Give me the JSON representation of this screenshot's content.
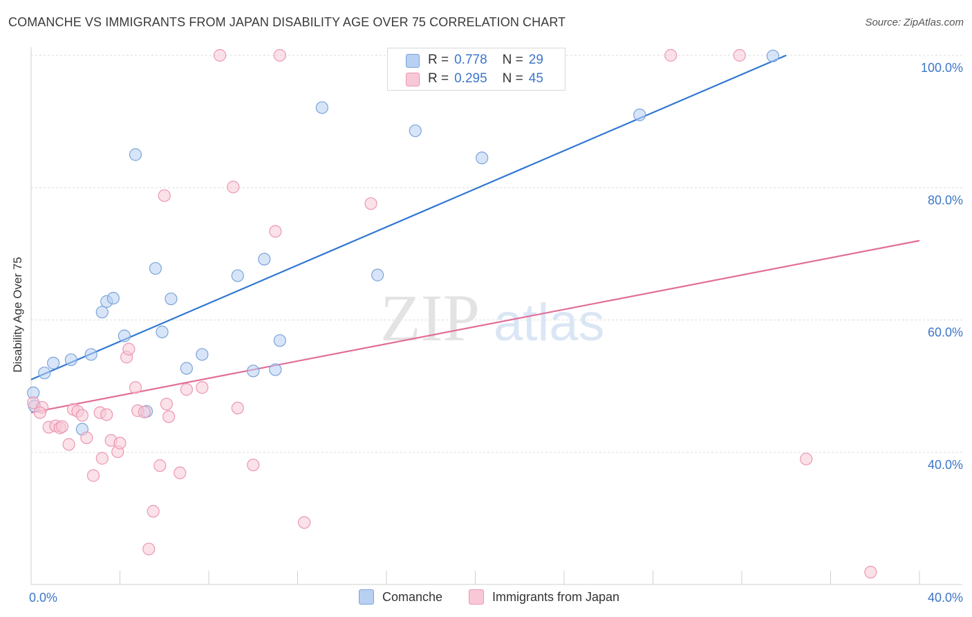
{
  "title": "COMANCHE VS IMMIGRANTS FROM JAPAN DISABILITY AGE OVER 75 CORRELATION CHART",
  "source": "Source: ZipAtlas.com",
  "watermark": {
    "zip": "ZIP",
    "atlas": "atlas"
  },
  "stats": [
    {
      "r_label": "R =",
      "r_value": "0.778",
      "n_label": "N =",
      "n_value": "29"
    },
    {
      "r_label": "R =",
      "r_value": "0.295",
      "n_label": "N =",
      "n_value": "45"
    }
  ],
  "legend": [
    {
      "label": "Comanche"
    },
    {
      "label": "Immigrants from Japan"
    }
  ],
  "colors": {
    "blue_fill": "#b8d0f2",
    "blue_stroke": "#7aa3da",
    "blue_line": "#2f77d4",
    "pink_fill": "#f8c8d6",
    "pink_stroke": "#eb97b3",
    "pink_line": "#e26d99",
    "axis_label": "#3d76c8",
    "grid": "#dcdcdc"
  },
  "chart_data": {
    "type": "scatter",
    "title": "COMANCHE VS IMMIGRANTS FROM JAPAN DISABILITY AGE OVER 75 CORRELATION CHART",
    "xlabel": "",
    "ylabel": "Disability Age Over 75",
    "xlim": [
      0,
      40
    ],
    "ylim": [
      21.5,
      101
    ],
    "x_tick_labels": [
      "0.0%",
      "40.0%"
    ],
    "y_ticks": [
      40,
      60,
      80,
      100
    ],
    "y_tick_labels": [
      "40.0%",
      "60.0%",
      "80.0%",
      "100.0%"
    ],
    "grid": true,
    "series": [
      {
        "name": "Comanche",
        "color": "blue",
        "r": 0.778,
        "n": 29,
        "trend": {
          "x0": 0.0,
          "y0": 51.0,
          "x1": 34.0,
          "y1": 100.0
        },
        "points": [
          [
            0.1,
            49.0
          ],
          [
            0.6,
            52.0
          ],
          [
            1.0,
            53.5
          ],
          [
            1.8,
            54.0
          ],
          [
            2.3,
            43.5
          ],
          [
            2.7,
            54.8
          ],
          [
            3.2,
            61.2
          ],
          [
            3.4,
            62.8
          ],
          [
            3.7,
            63.3
          ],
          [
            4.2,
            57.6
          ],
          [
            4.7,
            85.0
          ],
          [
            5.2,
            46.2
          ],
          [
            5.6,
            67.8
          ],
          [
            5.9,
            58.2
          ],
          [
            6.3,
            63.2
          ],
          [
            7.0,
            52.7
          ],
          [
            7.7,
            54.8
          ],
          [
            9.3,
            66.7
          ],
          [
            10.0,
            52.3
          ],
          [
            10.5,
            69.2
          ],
          [
            11.0,
            52.5
          ],
          [
            11.2,
            56.9
          ],
          [
            13.1,
            92.1
          ],
          [
            15.6,
            66.8
          ],
          [
            17.3,
            88.6
          ],
          [
            20.3,
            84.5
          ],
          [
            27.4,
            91.0
          ],
          [
            33.4,
            99.9
          ],
          [
            0.15,
            47.0
          ]
        ]
      },
      {
        "name": "Immigrants from Japan",
        "color": "pink",
        "r": 0.295,
        "n": 45,
        "trend": {
          "x0": 0.0,
          "y0": 46.0,
          "x1": 40.0,
          "y1": 72.0
        },
        "points": [
          [
            0.1,
            47.5
          ],
          [
            0.5,
            46.8
          ],
          [
            0.8,
            43.8
          ],
          [
            1.1,
            44.0
          ],
          [
            1.3,
            43.7
          ],
          [
            1.4,
            43.9
          ],
          [
            1.7,
            41.2
          ],
          [
            1.9,
            46.5
          ],
          [
            2.1,
            46.2
          ],
          [
            2.3,
            45.6
          ],
          [
            2.5,
            42.2
          ],
          [
            2.8,
            36.5
          ],
          [
            3.1,
            46.0
          ],
          [
            3.2,
            39.1
          ],
          [
            3.4,
            45.7
          ],
          [
            3.6,
            41.8
          ],
          [
            3.9,
            40.1
          ],
          [
            4.0,
            41.4
          ],
          [
            4.3,
            54.4
          ],
          [
            4.4,
            55.6
          ],
          [
            4.7,
            49.8
          ],
          [
            4.8,
            46.3
          ],
          [
            5.1,
            46.1
          ],
          [
            5.5,
            31.1
          ],
          [
            5.3,
            25.4
          ],
          [
            5.8,
            38.0
          ],
          [
            6.0,
            78.8
          ],
          [
            6.1,
            47.3
          ],
          [
            6.2,
            45.4
          ],
          [
            6.7,
            36.9
          ],
          [
            7.0,
            49.5
          ],
          [
            7.7,
            49.8
          ],
          [
            8.5,
            100.0
          ],
          [
            9.1,
            80.1
          ],
          [
            9.3,
            46.7
          ],
          [
            10.0,
            38.1
          ],
          [
            11.0,
            73.4
          ],
          [
            11.2,
            100.0
          ],
          [
            12.3,
            29.4
          ],
          [
            15.3,
            77.6
          ],
          [
            28.8,
            100.0
          ],
          [
            31.9,
            100.0
          ],
          [
            34.9,
            39.0
          ],
          [
            37.8,
            21.9
          ],
          [
            0.4,
            46.0
          ]
        ]
      }
    ]
  }
}
